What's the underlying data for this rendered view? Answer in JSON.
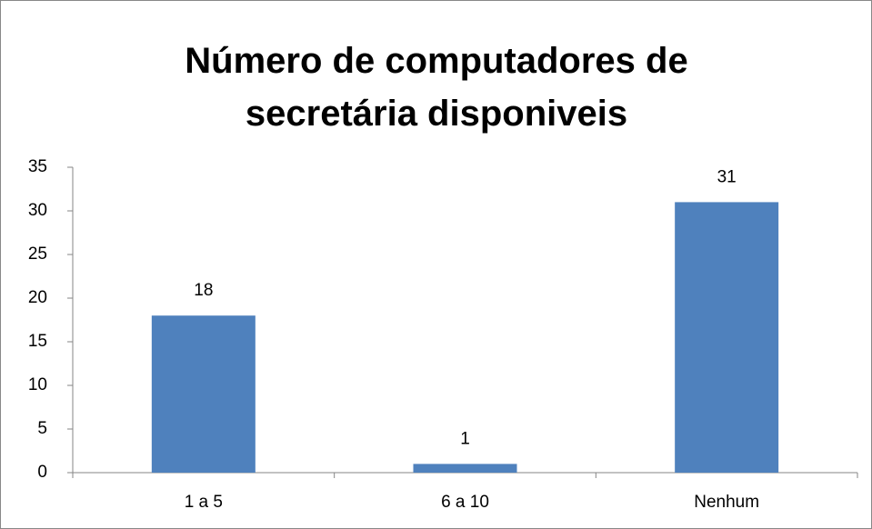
{
  "chart_data": {
    "type": "bar",
    "title": "Número de computadores de secretária disponiveis",
    "categories": [
      "1 a 5",
      "6 a 10",
      "Nenhum"
    ],
    "values": [
      18,
      1,
      31
    ],
    "color": "#4f81bd",
    "ylim": [
      0,
      35
    ],
    "yticks": [
      0,
      5,
      10,
      15,
      20,
      25,
      30,
      35
    ],
    "grid": false
  }
}
